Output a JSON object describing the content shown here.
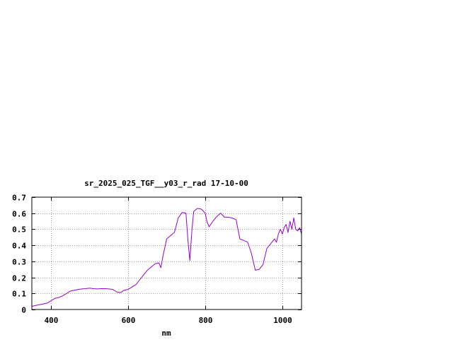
{
  "chart_data": {
    "type": "line",
    "title": "sr_2025_025_TGF__y03_r_rad 17-10-00",
    "xlabel": "nm",
    "ylabel": "",
    "xlim": [
      350,
      1050
    ],
    "ylim": [
      0,
      0.7
    ],
    "xticks": [
      400,
      600,
      800,
      1000
    ],
    "yticks": [
      0,
      0.1,
      0.2,
      0.3,
      0.4,
      0.5,
      0.6,
      0.7
    ],
    "xtick_labels": [
      "400",
      "600",
      "800",
      "1000"
    ],
    "ytick_labels": [
      "0",
      "0.1",
      "0.2",
      "0.3",
      "0.4",
      "0.5",
      "0.6",
      "0.7"
    ],
    "grid": true,
    "legend": "none",
    "series": [
      {
        "color": "#9400d3",
        "x": [
          350,
          360,
          370,
          380,
          390,
          400,
          410,
          420,
          430,
          440,
          450,
          460,
          470,
          480,
          490,
          500,
          510,
          520,
          530,
          540,
          550,
          560,
          570,
          580,
          590,
          600,
          610,
          620,
          630,
          640,
          650,
          660,
          670,
          680,
          685,
          690,
          700,
          710,
          720,
          730,
          740,
          750,
          755,
          760,
          765,
          770,
          780,
          790,
          800,
          805,
          810,
          820,
          830,
          840,
          850,
          860,
          870,
          880,
          890,
          900,
          910,
          920,
          930,
          940,
          950,
          960,
          970,
          980,
          985,
          990,
          995,
          1000,
          1005,
          1010,
          1015,
          1020,
          1025,
          1030,
          1035,
          1040,
          1045,
          1050
        ],
        "values": [
          0.02,
          0.025,
          0.03,
          0.035,
          0.04,
          0.055,
          0.07,
          0.075,
          0.085,
          0.1,
          0.115,
          0.12,
          0.125,
          0.128,
          0.13,
          0.133,
          0.13,
          0.128,
          0.13,
          0.13,
          0.128,
          0.125,
          0.11,
          0.105,
          0.12,
          0.125,
          0.14,
          0.155,
          0.185,
          0.215,
          0.245,
          0.265,
          0.285,
          0.29,
          0.26,
          0.33,
          0.44,
          0.46,
          0.48,
          0.57,
          0.605,
          0.6,
          0.44,
          0.305,
          0.48,
          0.61,
          0.63,
          0.625,
          0.6,
          0.545,
          0.515,
          0.55,
          0.58,
          0.6,
          0.575,
          0.575,
          0.57,
          0.56,
          0.44,
          0.43,
          0.42,
          0.35,
          0.245,
          0.25,
          0.28,
          0.38,
          0.41,
          0.44,
          0.42,
          0.47,
          0.5,
          0.47,
          0.51,
          0.53,
          0.48,
          0.55,
          0.5,
          0.57,
          0.5,
          0.49,
          0.51,
          0.47
        ]
      }
    ]
  }
}
